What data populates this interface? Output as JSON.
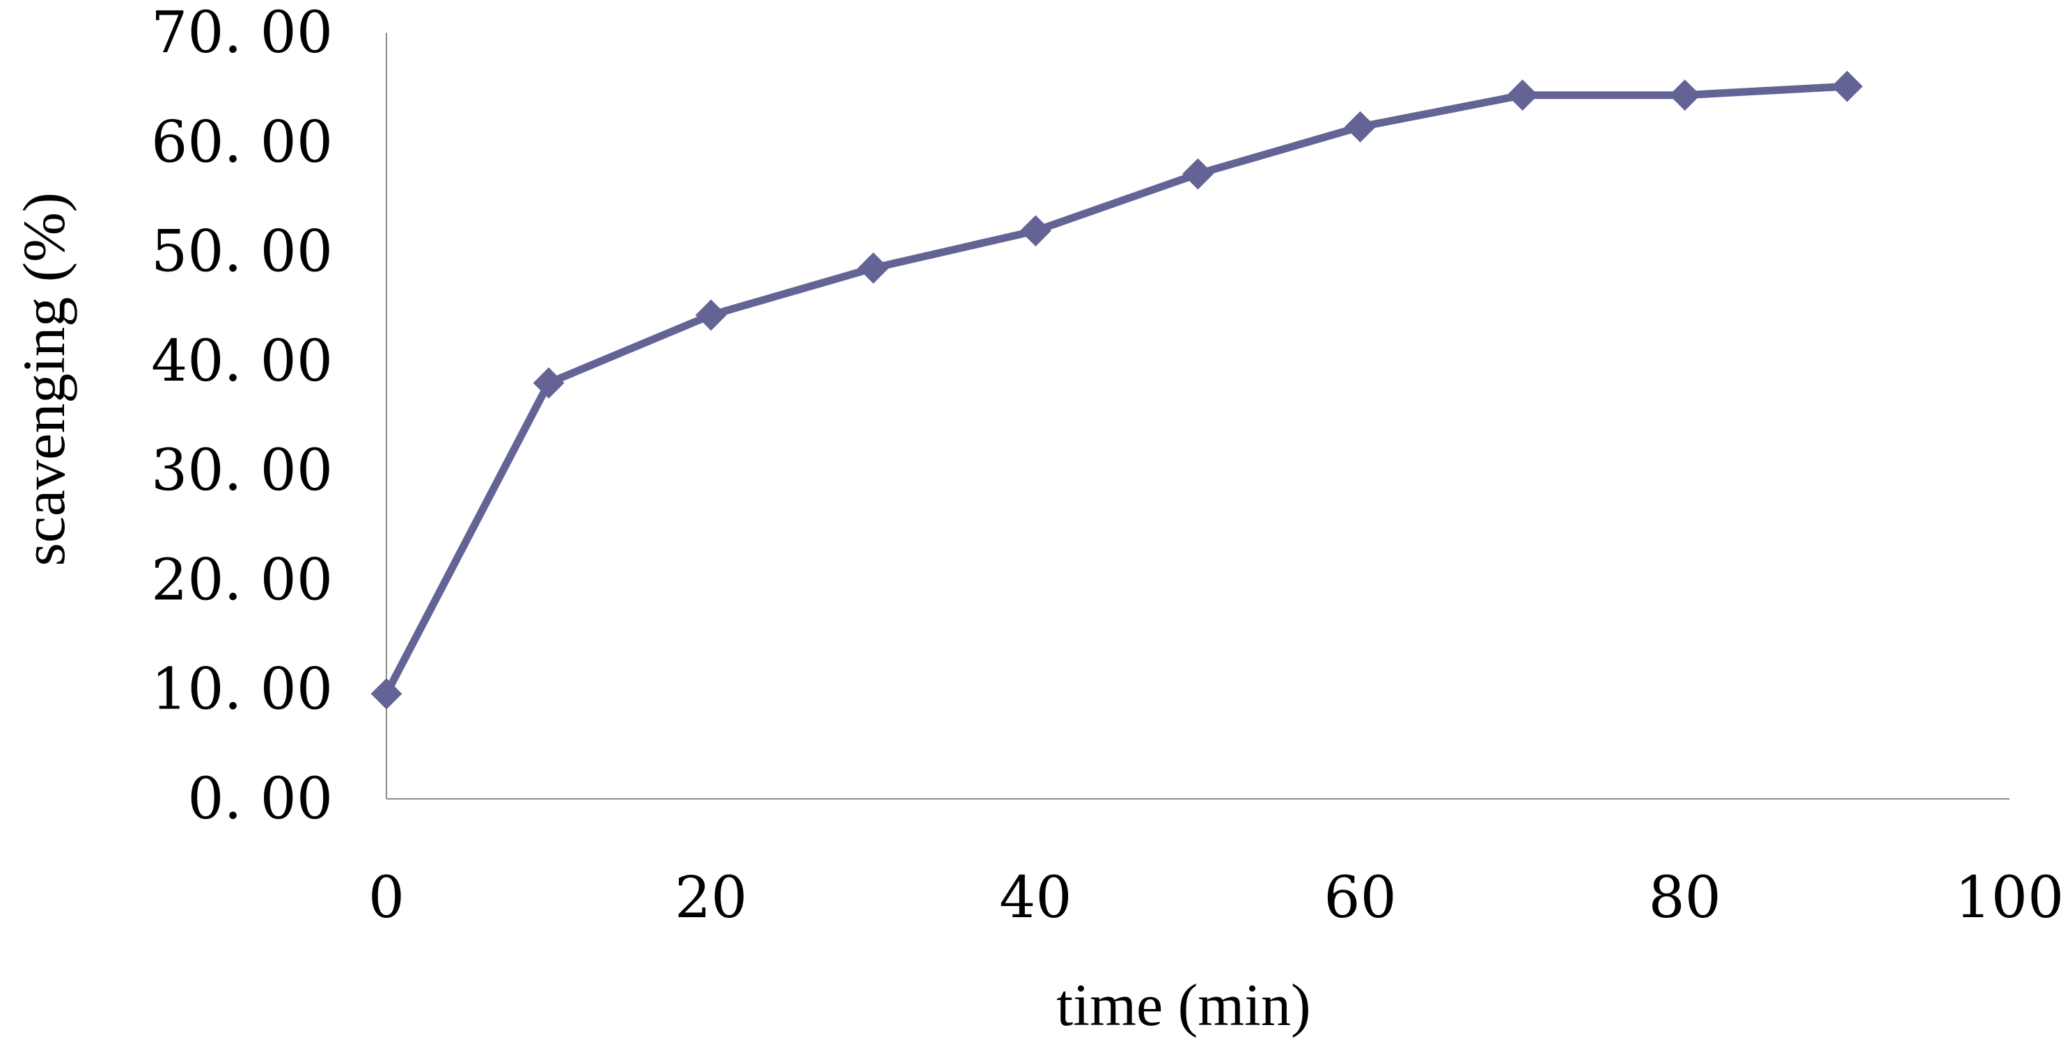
{
  "chart_data": {
    "type": "line",
    "xlabel": "time (min)",
    "ylabel": "scavenging (%)",
    "xlim": [
      0,
      100
    ],
    "ylim": [
      0,
      70
    ],
    "x_ticks": [
      "0",
      "20",
      "40",
      "60",
      "80",
      "100"
    ],
    "x_tick_values": [
      0,
      20,
      40,
      60,
      80,
      100
    ],
    "y_ticks": [
      "0. 00",
      "10. 00",
      "20. 00",
      "30. 00",
      "40. 00",
      "50. 00",
      "60. 00",
      "70. 00"
    ],
    "y_tick_values": [
      0,
      10,
      20,
      30,
      40,
      50,
      60,
      70
    ],
    "grid": false,
    "legend": "none",
    "marker": "diamond",
    "color": "#636396",
    "series": [
      {
        "x": [
          0,
          10,
          20,
          30,
          40,
          50,
          60,
          70,
          80,
          90
        ],
        "y": [
          9.6,
          38.0,
          44.2,
          48.5,
          51.9,
          57.1,
          61.4,
          64.3,
          64.3,
          65.1
        ]
      }
    ]
  }
}
